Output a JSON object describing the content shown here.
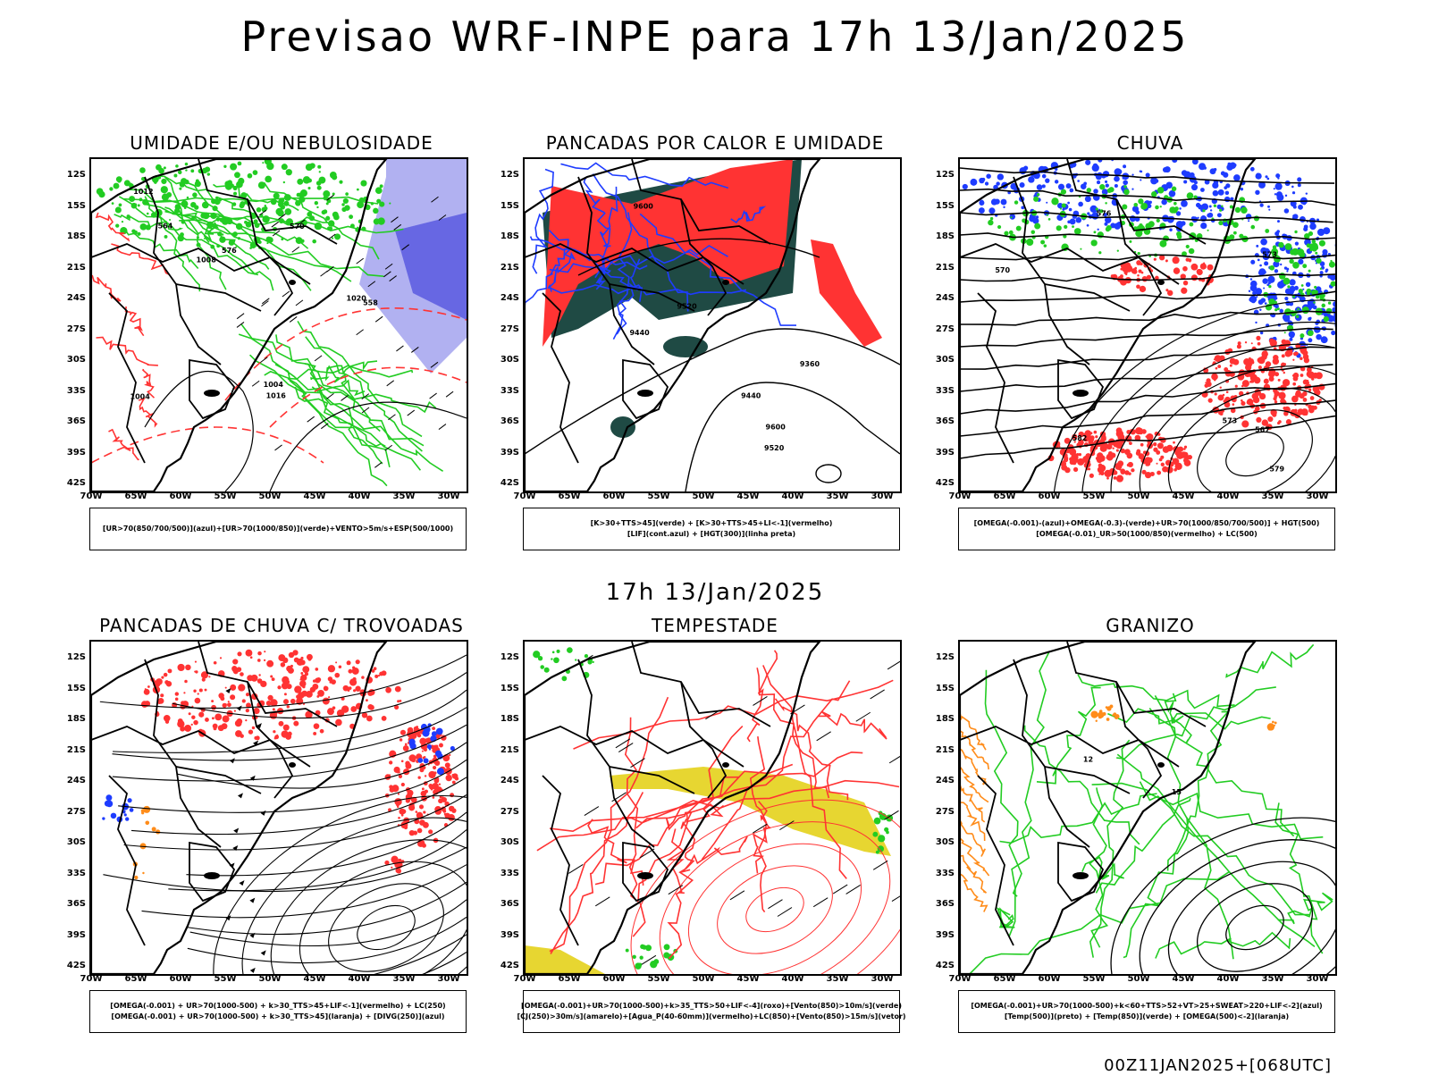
{
  "header": {
    "title": "Previsao WRF-INPE  para 17h 13/Jan/2025"
  },
  "middle": {
    "title": "17h 13/Jan/2025"
  },
  "footer": {
    "run_code": "00Z11JAN2025+[068UTC]"
  },
  "axes": {
    "lat_labels": [
      "12S",
      "15S",
      "18S",
      "21S",
      "24S",
      "27S",
      "30S",
      "33S",
      "36S",
      "39S",
      "42S"
    ],
    "lon_labels": [
      "70W",
      "65W",
      "60W",
      "55W",
      "50W",
      "45W",
      "40W",
      "35W",
      "30W"
    ]
  },
  "colors": {
    "blue": "#1e3cff",
    "green": "#22cc22",
    "red": "#ff3333",
    "lavender": "#a3a3ee",
    "dark_teal": "#1f4a44",
    "yellow": "#e6d426",
    "orange": "#ff8c1a",
    "black": "#000000"
  },
  "panels": [
    {
      "title": "UMIDADE E/OU NEBULOSIDADE",
      "legend": [
        "[UR>70(850/700/500)](azul)+[UR>70(1000/850)](verde)+VENTO>5m/s+ESP(500/1000)"
      ],
      "contour_labels": [
        "1008",
        "1004",
        "1004",
        "1012",
        "1016",
        "1020",
        "576",
        "570",
        "564",
        "558"
      ]
    },
    {
      "title": "PANCADAS POR CALOR E UMIDADE",
      "legend": [
        "[K>30+TTS>45](verde) + [K>30+TTS>45+LI<-1](vermelho)",
        "[LIF](cont.azul) + [HGT(300)](linha preta)"
      ],
      "contour_labels": [
        "9600",
        "9600",
        "9520",
        "9520",
        "9440",
        "9360",
        "9440"
      ]
    },
    {
      "title": "CHUVA",
      "legend": [
        "[OMEGA(-0.001)-(azul)+OMEGA(-0.3)-(verde)+UR>70(1000/850/700/500)] + HGT(500)",
        "[OMEGA(-0.01)_UR>50(1000/850)(vermelho) + LC(500)"
      ],
      "contour_labels": [
        "582",
        "579",
        "576",
        "573",
        "570",
        "567",
        "573"
      ]
    },
    {
      "title": "PANCADAS DE CHUVA C/ TROVOADAS",
      "legend": [
        "[OMEGA(-0.001) + UR>70(1000-500) + k>30_TTS>45+LIF<-1](vermelho) + LC(250)",
        "[OMEGA(-0.001) + UR>70(1000-500) + k>30_TTS>45](laranja) + [DIVG(250)](azul)"
      ],
      "contour_labels": []
    },
    {
      "title": "TEMPESTADE",
      "legend": [
        "[OMEGA(-0.001)+UR>70(1000-500)+k>35_TTS>50+LIF<-4](roxo)+[Vento(850)>10m/s](verde)",
        "[CJ(250)>30m/s](amarelo)+[Agua_P(40-60mm)](vermelho)+LC(850)+[Vento(850)>15m/s](vetor)"
      ],
      "contour_labels": []
    },
    {
      "title": "GRANIZO",
      "legend": [
        "[OMEGA(-0.001)+UR>70(1000-500)+k<60+TTS>52+VT>25+SWEAT>220+LIF<-2](azul)",
        "[Temp(500)](preto) + [Temp(850)](verde) + [OMEGA(500)<-2](laranja)"
      ],
      "contour_labels": [
        "12",
        "15"
      ]
    }
  ]
}
